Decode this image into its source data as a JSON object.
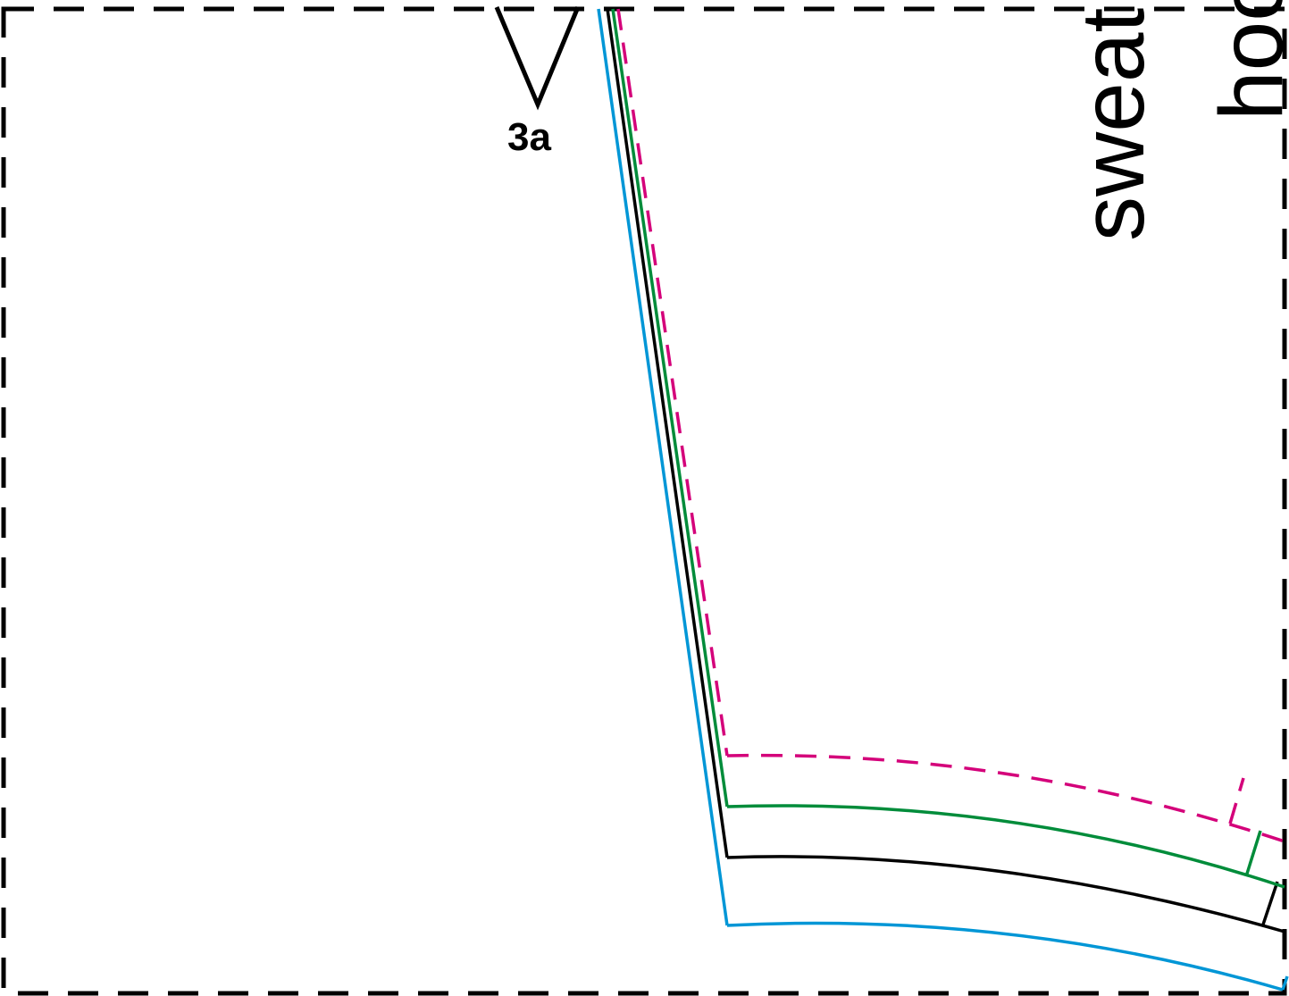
{
  "notch": {
    "label": "3a"
  },
  "piece_labels": {
    "sweatshirt": "sweat",
    "hoodie": "hoo"
  },
  "colors": {
    "page_border": "#000000",
    "outline_black": "#000000",
    "outline_green": "#008c3a",
    "outline_blue": "#0096d6",
    "outline_magenta_dashed": "#d4007a"
  }
}
